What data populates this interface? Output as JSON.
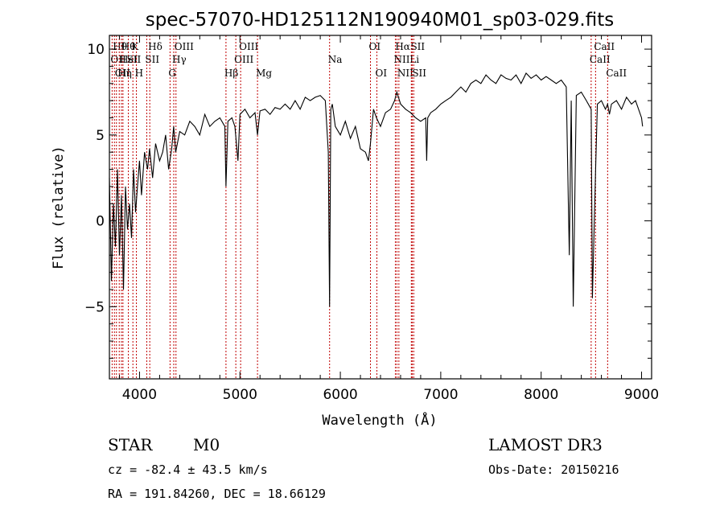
{
  "chart_data": {
    "type": "line",
    "title": "spec-57070-HD125112N190940M01_sp03-029.fits",
    "xlabel": "Wavelength (Å)",
    "ylabel": "Flux (relative)",
    "xlim": [
      3700,
      9100
    ],
    "ylim": [
      -9.2,
      10.8
    ],
    "x_ticks": [
      4000,
      5000,
      6000,
      7000,
      8000,
      9000
    ],
    "y_ticks": [
      -5,
      0,
      5,
      10
    ],
    "grid": false,
    "series": [
      {
        "name": "flux",
        "x": [
          3700,
          3720,
          3740,
          3760,
          3780,
          3800,
          3820,
          3840,
          3860,
          3880,
          3900,
          3920,
          3940,
          3960,
          3980,
          4000,
          4020,
          4050,
          4080,
          4100,
          4130,
          4160,
          4200,
          4230,
          4260,
          4290,
          4320,
          4340,
          4360,
          4400,
          4450,
          4500,
          4550,
          4600,
          4650,
          4700,
          4750,
          4800,
          4850,
          4861,
          4880,
          4920,
          4950,
          4980,
          5000,
          5050,
          5100,
          5150,
          5175,
          5200,
          5250,
          5300,
          5350,
          5400,
          5450,
          5500,
          5550,
          5600,
          5650,
          5700,
          5750,
          5800,
          5850,
          5880,
          5893,
          5905,
          5920,
          5950,
          6000,
          6050,
          6100,
          6150,
          6200,
          6250,
          6280,
          6300,
          6330,
          6360,
          6400,
          6450,
          6500,
          6540,
          6563,
          6600,
          6650,
          6700,
          6750,
          6800,
          6850,
          6860,
          6870,
          6900,
          6950,
          7000,
          7050,
          7100,
          7150,
          7200,
          7250,
          7300,
          7350,
          7400,
          7450,
          7500,
          7550,
          7600,
          7650,
          7700,
          7750,
          7800,
          7850,
          7900,
          7950,
          8000,
          8050,
          8100,
          8150,
          8200,
          8250,
          8280,
          8300,
          8320,
          8350,
          8400,
          8450,
          8498,
          8510,
          8542,
          8560,
          8600,
          8640,
          8662,
          8680,
          8700,
          8750,
          8800,
          8850,
          8900,
          8940,
          8970,
          9000,
          9010
        ],
        "values": [
          2.5,
          -3.5,
          1.0,
          -1.5,
          3.0,
          -2.0,
          1.5,
          -4.0,
          2.0,
          -0.5,
          1.0,
          -1.0,
          3.0,
          0.5,
          2.0,
          3.5,
          1.5,
          4.0,
          3.0,
          4.2,
          2.5,
          4.5,
          3.5,
          4.0,
          5.0,
          3.0,
          4.2,
          5.5,
          4.0,
          5.2,
          5.0,
          5.8,
          5.5,
          5.0,
          6.2,
          5.5,
          5.8,
          6.0,
          5.5,
          2.0,
          5.8,
          6.0,
          5.5,
          3.5,
          6.2,
          6.5,
          6.0,
          6.3,
          5.0,
          6.4,
          6.5,
          6.2,
          6.6,
          6.5,
          6.8,
          6.5,
          7.0,
          6.5,
          7.2,
          7.0,
          7.2,
          7.3,
          7.0,
          4.0,
          -5.0,
          6.5,
          6.8,
          5.5,
          5.0,
          5.8,
          4.8,
          5.5,
          4.2,
          4.0,
          3.5,
          4.5,
          6.5,
          6.0,
          5.5,
          6.3,
          6.5,
          7.0,
          7.5,
          6.8,
          6.5,
          6.3,
          6.0,
          5.8,
          6.0,
          3.5,
          6.0,
          6.3,
          6.5,
          6.8,
          7.0,
          7.2,
          7.5,
          7.8,
          7.5,
          8.0,
          8.2,
          8.0,
          8.5,
          8.2,
          8.0,
          8.5,
          8.3,
          8.2,
          8.5,
          8.0,
          8.6,
          8.3,
          8.5,
          8.2,
          8.4,
          8.2,
          8.0,
          8.2,
          7.8,
          -2.0,
          7.0,
          -5.0,
          7.3,
          7.5,
          7.0,
          6.5,
          -4.5,
          3.0,
          6.8,
          7.0,
          6.5,
          6.8,
          6.2,
          6.8,
          7.0,
          6.5,
          7.2,
          6.8,
          7.0,
          6.5,
          6.0,
          5.5
        ]
      }
    ],
    "lines": [
      {
        "w": 3727,
        "label": "OII",
        "row": 2
      },
      {
        "w": 3750,
        "label": "Hθ",
        "row": 1
      },
      {
        "w": 3770,
        "label": "OII",
        "row": 3
      },
      {
        "w": 3798,
        "label": "Hη",
        "row": 3
      },
      {
        "w": 3820,
        "label": "HeI",
        "row": 2
      },
      {
        "w": 3835,
        "label": "Hθ",
        "row": 1
      },
      {
        "w": 3889,
        "label": "SII",
        "row": 2
      },
      {
        "w": 3934,
        "label": "K",
        "row": 1
      },
      {
        "w": 3969,
        "label": "H",
        "row": 3
      },
      {
        "w": 4072,
        "label": "SII",
        "row": 2
      },
      {
        "w": 4102,
        "label": "Hδ",
        "row": 1
      },
      {
        "w": 4304,
        "label": "G",
        "row": 3
      },
      {
        "w": 4341,
        "label": "Hγ",
        "row": 2
      },
      {
        "w": 4363,
        "label": "OIII",
        "row": 1
      },
      {
        "w": 4861,
        "label": "Hβ",
        "row": 3
      },
      {
        "w": 4959,
        "label": "OIII",
        "row": 2
      },
      {
        "w": 5007,
        "label": "OIII",
        "row": 1
      },
      {
        "w": 5175,
        "label": "Mg",
        "row": 3
      },
      {
        "w": 5893,
        "label": "Na",
        "row": 2
      },
      {
        "w": 6300,
        "label": "OI",
        "row": 1
      },
      {
        "w": 6364,
        "label": "OI",
        "row": 3
      },
      {
        "w": 6548,
        "label": "NII",
        "row": 2
      },
      {
        "w": 6563,
        "label": "Hα",
        "row": 1
      },
      {
        "w": 6583,
        "label": "NII",
        "row": 3
      },
      {
        "w": 6707,
        "label": "Li",
        "row": 2
      },
      {
        "w": 6716,
        "label": "SII",
        "row": 1
      },
      {
        "w": 6731,
        "label": "SII",
        "row": 3
      },
      {
        "w": 8498,
        "label": "CaII",
        "row": 2
      },
      {
        "w": 8542,
        "label": "CaII",
        "row": 1
      },
      {
        "w": 8662,
        "label": "CaII",
        "row": 3
      }
    ]
  },
  "info": {
    "class": "STAR",
    "subclass": "M0",
    "survey": "LAMOST DR3",
    "cz": "cz = -82.4 ± 43.5 km/s",
    "obsdate": "Obs-Date: 20150216",
    "radec": "RA = 191.84260, DEC =  18.66129"
  }
}
